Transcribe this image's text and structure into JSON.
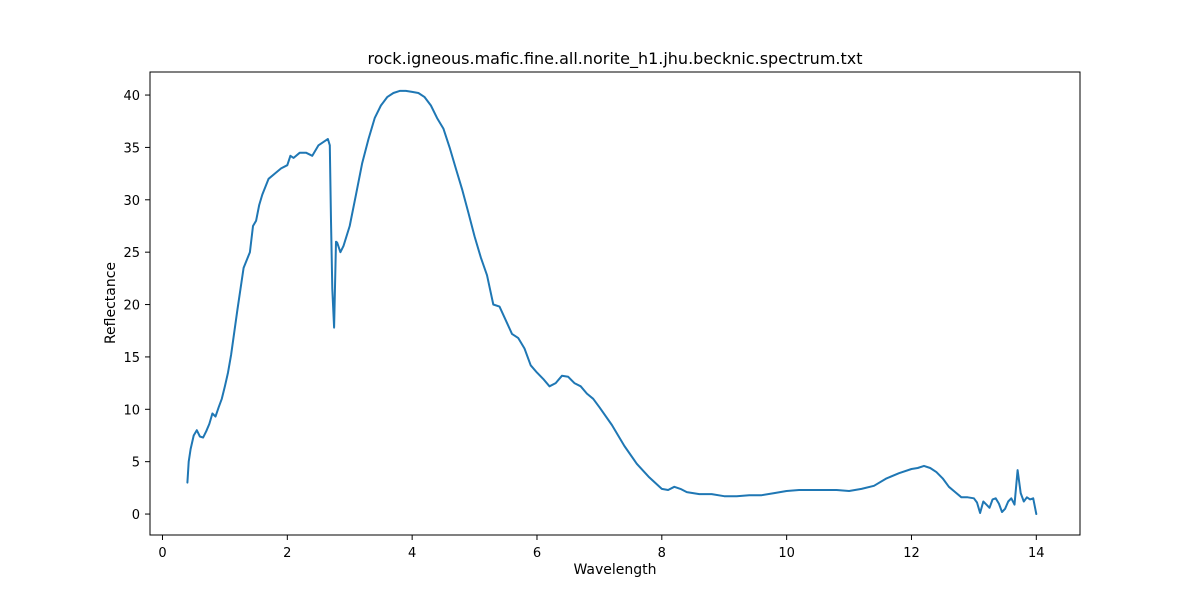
{
  "chart_data": {
    "type": "line",
    "title": "rock.igneous.mafic.fine.all.norite_h1.jhu.becknic.spectrum.txt",
    "xlabel": "Wavelength",
    "ylabel": "Reflectance",
    "xlim": [
      -0.2,
      14.7
    ],
    "ylim": [
      -2.0,
      42.2
    ],
    "xticks": [
      0,
      2,
      4,
      6,
      8,
      10,
      12,
      14
    ],
    "yticks": [
      0,
      5,
      10,
      15,
      20,
      25,
      30,
      35,
      40
    ],
    "grid": false,
    "line_color": "#1f77b4",
    "series": [
      {
        "x": [
          0.4,
          0.42,
          0.45,
          0.5,
          0.55,
          0.6,
          0.65,
          0.7,
          0.75,
          0.8,
          0.85,
          0.9,
          0.95,
          1.0,
          1.05,
          1.1,
          1.2,
          1.3,
          1.4,
          1.45,
          1.5,
          1.55,
          1.6,
          1.7,
          1.8,
          1.9,
          2.0,
          2.05,
          2.1,
          2.2,
          2.3,
          2.4,
          2.5,
          2.6,
          2.65,
          2.68,
          2.7,
          2.72,
          2.75,
          2.78,
          2.8,
          2.85,
          2.9,
          3.0,
          3.1,
          3.2,
          3.3,
          3.4,
          3.5,
          3.6,
          3.7,
          3.8,
          3.9,
          4.0,
          4.1,
          4.2,
          4.3,
          4.4,
          4.5,
          4.6,
          4.7,
          4.8,
          4.9,
          5.0,
          5.1,
          5.2,
          5.3,
          5.4,
          5.5,
          5.6,
          5.7,
          5.8,
          5.9,
          6.0,
          6.1,
          6.2,
          6.3,
          6.4,
          6.5,
          6.6,
          6.7,
          6.8,
          6.9,
          7.0,
          7.2,
          7.4,
          7.6,
          7.8,
          8.0,
          8.1,
          8.2,
          8.3,
          8.4,
          8.6,
          8.8,
          9.0,
          9.2,
          9.4,
          9.6,
          9.8,
          10.0,
          10.2,
          10.4,
          10.6,
          10.8,
          11.0,
          11.2,
          11.4,
          11.6,
          11.8,
          12.0,
          12.1,
          12.2,
          12.3,
          12.4,
          12.5,
          12.6,
          12.7,
          12.8,
          12.9,
          13.0,
          13.05,
          13.1,
          13.15,
          13.2,
          13.25,
          13.3,
          13.35,
          13.4,
          13.45,
          13.5,
          13.55,
          13.6,
          13.65,
          13.7,
          13.75,
          13.8,
          13.85,
          13.9,
          13.95,
          14.0
        ],
        "y": [
          3.0,
          5.0,
          6.2,
          7.5,
          8.0,
          7.4,
          7.3,
          7.9,
          8.6,
          9.6,
          9.3,
          10.2,
          11.0,
          12.2,
          13.5,
          15.2,
          19.5,
          23.5,
          25.0,
          27.5,
          28.0,
          29.5,
          30.5,
          32.0,
          32.5,
          33.0,
          33.3,
          34.2,
          34.0,
          34.5,
          34.5,
          34.2,
          35.2,
          35.6,
          35.8,
          35.2,
          28.0,
          21.5,
          17.8,
          26.0,
          25.9,
          25.0,
          25.6,
          27.5,
          30.5,
          33.5,
          35.8,
          37.8,
          39.0,
          39.8,
          40.2,
          40.4,
          40.4,
          40.3,
          40.2,
          39.8,
          39.0,
          37.8,
          36.8,
          35.0,
          33.0,
          31.0,
          28.8,
          26.5,
          24.5,
          22.8,
          20.0,
          19.8,
          18.5,
          17.2,
          16.8,
          15.8,
          14.2,
          13.5,
          12.9,
          12.2,
          12.5,
          13.2,
          13.1,
          12.5,
          12.2,
          11.5,
          11.0,
          10.2,
          8.5,
          6.5,
          4.8,
          3.5,
          2.4,
          2.3,
          2.6,
          2.4,
          2.1,
          1.9,
          1.9,
          1.7,
          1.7,
          1.8,
          1.8,
          2.0,
          2.2,
          2.3,
          2.3,
          2.3,
          2.3,
          2.2,
          2.4,
          2.7,
          3.4,
          3.9,
          4.3,
          4.4,
          4.6,
          4.4,
          4.0,
          3.4,
          2.6,
          2.1,
          1.6,
          1.6,
          1.5,
          1.1,
          0.1,
          1.2,
          0.9,
          0.6,
          1.4,
          1.5,
          1.0,
          0.2,
          0.5,
          1.2,
          1.5,
          0.9,
          4.2,
          2.0,
          1.2,
          1.6,
          1.4,
          1.5,
          0.0
        ]
      }
    ]
  }
}
